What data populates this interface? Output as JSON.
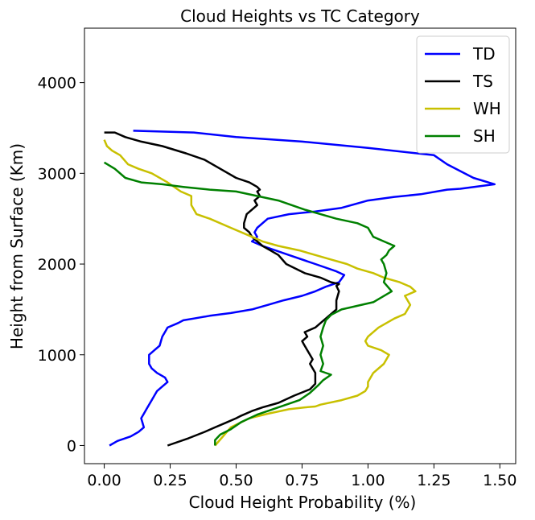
{
  "chart_data": {
    "type": "line",
    "title": "Cloud Heights vs TC Category",
    "xlabel": "Cloud Height Probability (%)",
    "ylabel": "Height from Surface (Km)",
    "xlim": [
      -0.075,
      1.56
    ],
    "ylim": [
      -200,
      4600
    ],
    "xticks": [
      0.0,
      0.25,
      0.5,
      0.75,
      1.0,
      1.25,
      1.5
    ],
    "xtick_labels": [
      "0.00",
      "0.25",
      "0.50",
      "0.75",
      "1.00",
      "1.25",
      "1.50"
    ],
    "yticks": [
      0,
      1000,
      2000,
      3000,
      4000
    ],
    "ytick_labels": [
      "0",
      "1000",
      "2000",
      "3000",
      "4000"
    ],
    "grid": false,
    "legend_position": "top-right",
    "series": [
      {
        "name": "TD",
        "color": "#0000ff",
        "x": [
          0.02,
          0.05,
          0.1,
          0.13,
          0.15,
          0.14,
          0.15,
          0.16,
          0.18,
          0.2,
          0.22,
          0.24,
          0.23,
          0.2,
          0.18,
          0.17,
          0.17,
          0.19,
          0.21,
          0.22,
          0.23,
          0.24,
          0.28,
          0.3,
          0.34,
          0.4,
          0.48,
          0.56,
          0.62,
          0.68,
          0.75,
          0.8,
          0.84,
          0.89,
          0.91,
          0.88,
          0.8,
          0.7,
          0.6,
          0.56,
          0.58,
          0.57,
          0.58,
          0.6,
          0.62,
          0.7,
          0.8,
          0.9,
          1.0,
          1.1,
          1.2,
          1.26,
          1.3,
          1.35,
          1.48,
          1.4,
          1.3,
          1.25,
          1.0,
          0.75,
          0.5,
          0.34,
          0.11
        ],
        "y": [
          0,
          50,
          100,
          150,
          200,
          300,
          350,
          400,
          500,
          600,
          650,
          700,
          750,
          800,
          850,
          900,
          1000,
          1050,
          1100,
          1200,
          1250,
          1300,
          1350,
          1380,
          1400,
          1430,
          1460,
          1500,
          1550,
          1600,
          1650,
          1700,
          1750,
          1800,
          1880,
          1920,
          2000,
          2100,
          2200,
          2250,
          2300,
          2350,
          2400,
          2450,
          2500,
          2550,
          2580,
          2620,
          2700,
          2740,
          2770,
          2800,
          2820,
          2830,
          2880,
          2950,
          3100,
          3200,
          3280,
          3350,
          3400,
          3450,
          3470
        ]
      },
      {
        "name": "TS",
        "color": "#000000",
        "x": [
          0.24,
          0.32,
          0.38,
          0.42,
          0.46,
          0.5,
          0.52,
          0.56,
          0.6,
          0.66,
          0.72,
          0.78,
          0.8,
          0.8,
          0.78,
          0.79,
          0.78,
          0.77,
          0.76,
          0.75,
          0.77,
          0.76,
          0.8,
          0.84,
          0.88,
          0.88,
          0.89,
          0.88,
          0.89,
          0.86,
          0.82,
          0.76,
          0.69,
          0.66,
          0.63,
          0.6,
          0.56,
          0.55,
          0.53,
          0.53,
          0.54,
          0.56,
          0.58,
          0.57,
          0.59,
          0.58,
          0.59,
          0.58,
          0.55,
          0.5,
          0.44,
          0.38,
          0.31,
          0.22,
          0.14,
          0.08,
          0.04,
          0.0
        ],
        "y": [
          0,
          80,
          150,
          200,
          250,
          300,
          330,
          380,
          420,
          470,
          550,
          620,
          680,
          800,
          900,
          950,
          1000,
          1050,
          1100,
          1150,
          1200,
          1250,
          1300,
          1400,
          1500,
          1600,
          1700,
          1760,
          1780,
          1800,
          1850,
          1900,
          2000,
          2100,
          2150,
          2200,
          2300,
          2350,
          2400,
          2450,
          2550,
          2600,
          2650,
          2700,
          2750,
          2800,
          2820,
          2850,
          2900,
          2950,
          3050,
          3150,
          3220,
          3300,
          3350,
          3400,
          3450,
          3450
        ]
      },
      {
        "name": "WH",
        "color": "#c8c000",
        "x": [
          0.42,
          0.48,
          0.55,
          0.62,
          0.7,
          0.76,
          0.8,
          0.82,
          0.9,
          0.96,
          0.99,
          1.0,
          1.0,
          1.02,
          1.06,
          1.08,
          1.05,
          1.0,
          0.99,
          1.0,
          1.04,
          1.1,
          1.14,
          1.16,
          1.14,
          1.18,
          1.16,
          1.12,
          1.06,
          1.02,
          0.96,
          0.92,
          0.86,
          0.8,
          0.74,
          0.66,
          0.6,
          0.56,
          0.48,
          0.4,
          0.35,
          0.33,
          0.33,
          0.29,
          0.24,
          0.18,
          0.13,
          0.09,
          0.06,
          0.03,
          0.01,
          0.0
        ],
        "y": [
          0,
          200,
          300,
          350,
          400,
          420,
          430,
          450,
          500,
          550,
          600,
          650,
          700,
          800,
          900,
          1000,
          1050,
          1100,
          1150,
          1200,
          1300,
          1400,
          1450,
          1550,
          1650,
          1700,
          1750,
          1800,
          1850,
          1900,
          1950,
          2000,
          2050,
          2100,
          2150,
          2200,
          2250,
          2300,
          2400,
          2500,
          2550,
          2650,
          2750,
          2800,
          2900,
          3000,
          3050,
          3100,
          3200,
          3250,
          3300,
          3370
        ]
      },
      {
        "name": "SH",
        "color": "#008000",
        "x": [
          0.42,
          0.42,
          0.44,
          0.48,
          0.52,
          0.58,
          0.66,
          0.74,
          0.78,
          0.81,
          0.83,
          0.86,
          0.82,
          0.83,
          0.82,
          0.83,
          0.82,
          0.83,
          0.84,
          0.86,
          0.9,
          0.96,
          1.02,
          1.09,
          1.06,
          1.07,
          1.06,
          1.05,
          1.07,
          1.08,
          1.1,
          1.06,
          1.02,
          1.01,
          1.0,
          0.96,
          0.88,
          0.76,
          0.66,
          0.58,
          0.5,
          0.4,
          0.3,
          0.22,
          0.14,
          0.08,
          0.04,
          0.0
        ],
        "y": [
          0,
          60,
          120,
          180,
          260,
          340,
          420,
          500,
          580,
          660,
          720,
          780,
          820,
          900,
          1000,
          1100,
          1200,
          1300,
          1380,
          1440,
          1500,
          1540,
          1580,
          1700,
          1800,
          1900,
          2000,
          2050,
          2100,
          2150,
          2200,
          2250,
          2300,
          2350,
          2400,
          2450,
          2500,
          2600,
          2700,
          2750,
          2800,
          2820,
          2850,
          2880,
          2900,
          2950,
          3050,
          3120
        ]
      }
    ]
  }
}
